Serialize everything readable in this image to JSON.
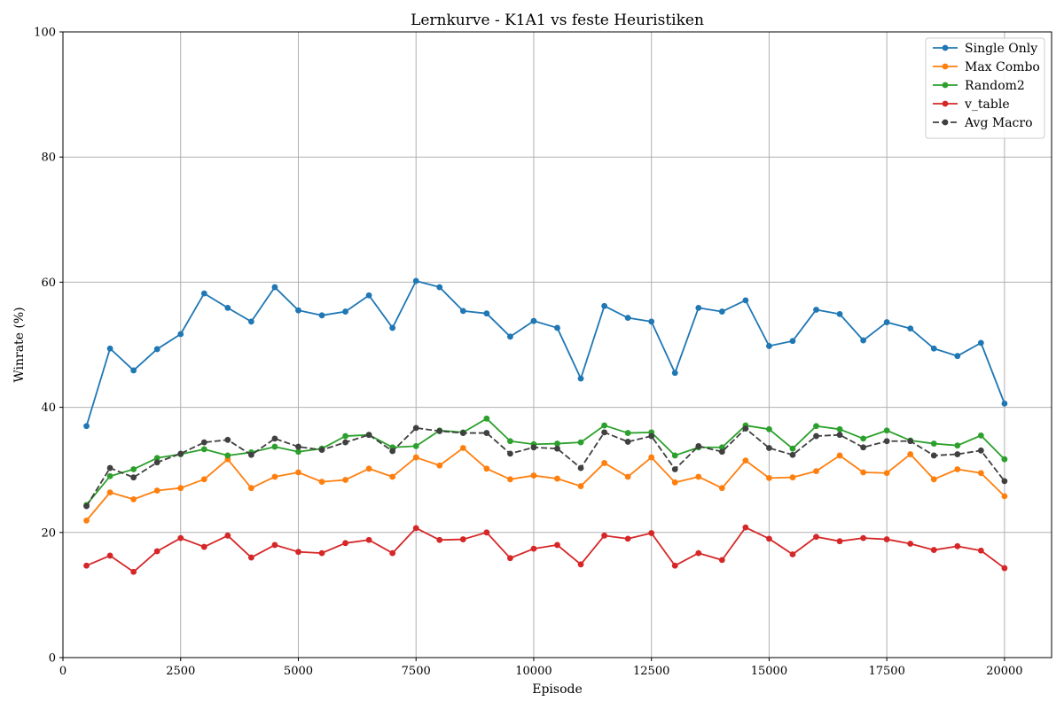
{
  "chart_data": {
    "type": "line",
    "title": "Lernkurve - K1A1 vs feste Heuristiken",
    "xlabel": "Episode",
    "ylabel": "Winrate (%)",
    "xlim": [
      0,
      21000
    ],
    "ylim": [
      0,
      100
    ],
    "xticks": [
      0,
      2500,
      5000,
      7500,
      10000,
      12500,
      15000,
      17500,
      20000
    ],
    "yticks": [
      0,
      20,
      40,
      60,
      80,
      100
    ],
    "grid": true,
    "legend_position": "top-right",
    "x": [
      500,
      1000,
      1500,
      2000,
      2500,
      3000,
      3500,
      4000,
      4500,
      5000,
      5500,
      6000,
      6500,
      7000,
      7500,
      8000,
      8500,
      9000,
      9500,
      10000,
      10500,
      11000,
      11500,
      12000,
      12500,
      13000,
      13500,
      14000,
      14500,
      15000,
      15500,
      16000,
      16500,
      17000,
      17500,
      18000,
      18500,
      19000,
      19500,
      20000
    ],
    "series": [
      {
        "name": "Single Only",
        "color": "#1f77b4",
        "style": "solid",
        "values": [
          37.0,
          49.4,
          45.9,
          49.3,
          51.7,
          58.2,
          55.9,
          53.7,
          59.2,
          55.5,
          54.7,
          55.3,
          57.9,
          52.7,
          60.2,
          59.2,
          55.4,
          55.0,
          51.3,
          53.8,
          52.7,
          44.6,
          56.2,
          54.3,
          53.7,
          45.5,
          55.9,
          55.3,
          57.1,
          49.8,
          50.6,
          55.6,
          54.9,
          50.7,
          53.6,
          52.6,
          49.4,
          48.2,
          50.3,
          40.6
        ]
      },
      {
        "name": "Max Combo",
        "color": "#ff7f0e",
        "style": "solid",
        "values": [
          21.9,
          26.4,
          25.3,
          26.7,
          27.1,
          28.5,
          31.7,
          27.1,
          28.9,
          29.6,
          28.1,
          28.4,
          30.2,
          28.9,
          32.0,
          30.7,
          33.5,
          30.2,
          28.5,
          29.1,
          28.6,
          27.4,
          31.1,
          28.9,
          32.0,
          28.0,
          28.9,
          27.1,
          31.5,
          28.7,
          28.8,
          29.8,
          32.3,
          29.6,
          29.5,
          32.5,
          28.5,
          30.1,
          29.5,
          25.8
        ]
      },
      {
        "name": "Random2",
        "color": "#2ca02c",
        "style": "solid",
        "values": [
          24.4,
          29.0,
          30.1,
          31.9,
          32.5,
          33.3,
          32.3,
          32.8,
          33.7,
          32.9,
          33.4,
          35.4,
          35.6,
          33.6,
          33.8,
          36.3,
          36.0,
          38.2,
          34.6,
          34.1,
          34.2,
          34.4,
          37.1,
          35.9,
          36.0,
          32.3,
          33.6,
          33.6,
          37.1,
          36.5,
          33.4,
          37.0,
          36.5,
          35.0,
          36.3,
          34.7,
          34.2,
          33.9,
          35.5,
          31.7
        ]
      },
      {
        "name": "v_table",
        "color": "#d62728",
        "style": "solid",
        "values": [
          14.7,
          16.3,
          13.7,
          17.0,
          19.1,
          17.7,
          19.5,
          16.0,
          18.0,
          16.9,
          16.7,
          18.3,
          18.8,
          16.7,
          20.7,
          18.8,
          18.9,
          20.0,
          15.9,
          17.4,
          18.0,
          14.9,
          19.5,
          19.0,
          19.9,
          14.7,
          16.7,
          15.6,
          20.8,
          19.0,
          16.5,
          19.3,
          18.6,
          19.1,
          18.9,
          18.2,
          17.2,
          17.8,
          17.1,
          14.3
        ]
      },
      {
        "name": "Avg Macro",
        "color": "#404040",
        "style": "dashed",
        "values": [
          24.2,
          30.3,
          28.8,
          31.2,
          32.6,
          34.4,
          34.8,
          32.4,
          35.0,
          33.7,
          33.2,
          34.4,
          35.6,
          33.0,
          36.7,
          36.2,
          35.9,
          35.9,
          32.6,
          33.6,
          33.4,
          30.3,
          36.0,
          34.5,
          35.4,
          30.1,
          33.8,
          32.9,
          36.6,
          33.5,
          32.4,
          35.4,
          35.6,
          33.6,
          34.6,
          34.6,
          32.3,
          32.5,
          33.1,
          28.2
        ]
      }
    ]
  }
}
